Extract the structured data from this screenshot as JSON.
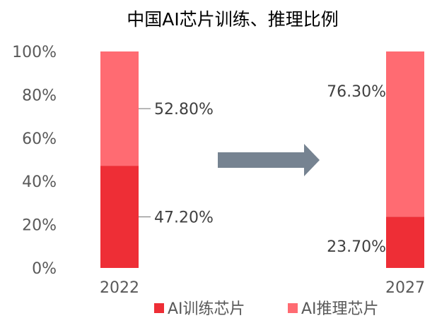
{
  "chart_data": {
    "type": "bar",
    "stacked": true,
    "percent": true,
    "title": "中国AI芯片训练、推理比例",
    "categories": [
      "2022",
      "2027"
    ],
    "series": [
      {
        "name": "AI训练芯片",
        "values": [
          47.2,
          23.7
        ],
        "labels": [
          "47.20%",
          "23.70%"
        ],
        "color": "#EE2E36"
      },
      {
        "name": "AI推理芯片",
        "values": [
          52.8,
          76.3
        ],
        "labels": [
          "52.80%",
          "76.30%"
        ],
        "color": "#FF6B72"
      }
    ],
    "ylim": [
      0,
      100
    ],
    "yticks": [
      "0%",
      "20%",
      "40%",
      "60%",
      "80%",
      "100%"
    ],
    "grid": false,
    "legend": "bottom",
    "arrow_color": "#768391"
  }
}
